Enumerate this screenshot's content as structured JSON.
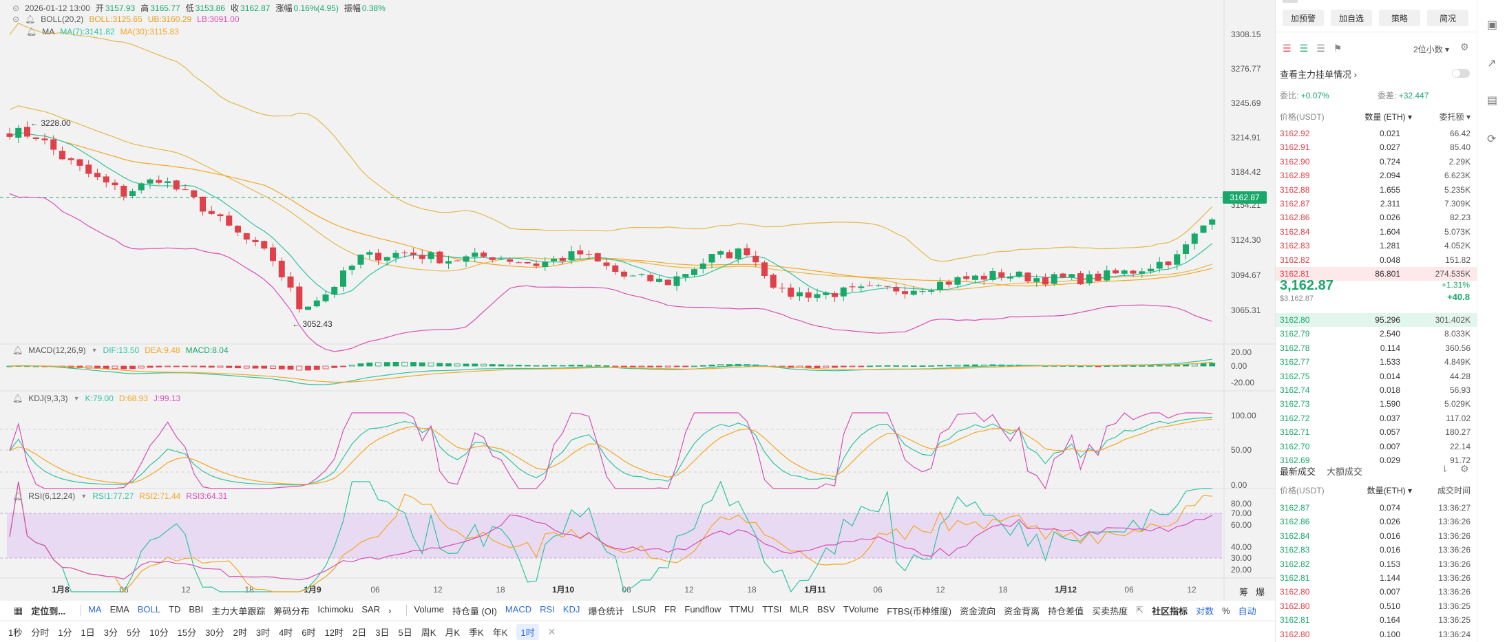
{
  "header": {
    "date": "2026-01-12 13:00",
    "open_label": "开",
    "open": "3157.93",
    "high_label": "高",
    "high": "3165.77",
    "low_label": "低",
    "low": "3153.86",
    "close_label": "收",
    "close": "3162.87",
    "change_label": "涨幅",
    "change": "0.16%(4.95)",
    "amp_label": "振幅",
    "amp": "0.38%"
  },
  "boll": {
    "label": "BOLL(20,2)",
    "boll": "BOLL:3125.65",
    "ub": "UB:3160.29",
    "lb": "LB:3091.00"
  },
  "ma": {
    "label": "MA",
    "ma7": "MA(7):3141.82",
    "ma30": "MA(30):3115.83"
  },
  "macd": {
    "label": "MACD(12,26,9)",
    "dif": "DIF:13.50",
    "dea": "DEA:9.48",
    "macd": "MACD:8.04"
  },
  "kdj": {
    "label": "KDJ(9,3,3)",
    "k": "K:79.00",
    "d": "D:68.93",
    "j": "J:99.13"
  },
  "rsi": {
    "label": "RSI(6,12,24)",
    "r1": "RSI1:77.27",
    "r2": "RSI2:71.44",
    "r3": "RSI3:64.31"
  },
  "annotations": {
    "high": "3228.00",
    "low": "3052.43"
  },
  "price_axis": [
    "3308.15",
    "3276.77",
    "3245.69",
    "3214.91",
    "3184.42",
    "3154.21",
    "3124.30",
    "3094.67",
    "3065.31"
  ],
  "current_price_tag": "3162.87",
  "macd_axis": [
    "20.00",
    "0.00",
    "-20.00"
  ],
  "kdj_axis": [
    "100.00",
    "50.00",
    "0.00"
  ],
  "rsi_axis": [
    "80.00",
    "70.00",
    "60.00",
    "40.00",
    "30.00",
    "20.00"
  ],
  "time_axis": [
    "1月8",
    "06",
    "12",
    "18",
    "1月9",
    "06",
    "12",
    "18",
    "1月10",
    "06",
    "12",
    "18",
    "1月11",
    "06",
    "12",
    "18",
    "1月12",
    "06",
    "12"
  ],
  "axis_corner": [
    "筹",
    "爆"
  ],
  "indicators_bar": {
    "draw_tool": "定位到...",
    "items": [
      "MA",
      "EMA",
      "BOLL",
      "TD",
      "BBI",
      "主力大单跟踪",
      "筹码分布",
      "Ichimoku",
      "SAR"
    ],
    "more": "›",
    "sub_items": [
      "Volume",
      "持仓量 (OI)",
      "MACD",
      "RSI",
      "KDJ",
      "爆仓统计",
      "LSUR",
      "FR",
      "Fundflow",
      "TTMU",
      "TTSI",
      "MLR",
      "BSV",
      "TVolume",
      "FTBS(币种维度)",
      "资金流向",
      "资金背离",
      "持仓差值",
      "买卖热度"
    ],
    "community": "社区指标",
    "log": "对数",
    "pct": "%",
    "auto": "自动"
  },
  "timeframes": [
    "1秒",
    "分时",
    "1分",
    "1日",
    "3分",
    "5分",
    "10分",
    "15分",
    "30分",
    "2时",
    "3时",
    "4时",
    "6时",
    "12时",
    "2日",
    "3日",
    "5日",
    "周K",
    "月K",
    "季K",
    "年K",
    "1时"
  ],
  "panel": {
    "buttons": [
      "加预警",
      "加自选",
      "策略",
      "简况"
    ],
    "decimals": "2位小数",
    "main_orders": "查看主力挂单情况",
    "ratio_label": "委比:",
    "ratio": "+0.07%",
    "diff_label": "委差:",
    "diff": "+32.447",
    "cols": [
      "价格(USDT)",
      "数量 (ETH)",
      "委托额"
    ],
    "asks": [
      [
        "3162.92",
        "0.021",
        "66.42"
      ],
      [
        "3162.91",
        "0.027",
        "85.40"
      ],
      [
        "3162.90",
        "0.724",
        "2.29K"
      ],
      [
        "3162.89",
        "2.094",
        "6.623K"
      ],
      [
        "3162.88",
        "1.655",
        "5.235K"
      ],
      [
        "3162.87",
        "2.311",
        "7.309K"
      ],
      [
        "3162.86",
        "0.026",
        "82.23"
      ],
      [
        "3162.84",
        "1.604",
        "5.073K"
      ],
      [
        "3162.83",
        "1.281",
        "4.052K"
      ],
      [
        "3162.82",
        "0.048",
        "151.82"
      ],
      [
        "3162.81",
        "86.801",
        "274.535K"
      ]
    ],
    "last_price": "3,162.87",
    "last_price_sub": "$3,162.87",
    "pct_change": "+1.31%",
    "abs_change": "+40.8",
    "bids": [
      [
        "3162.80",
        "95.296",
        "301.402K"
      ],
      [
        "3162.79",
        "2.540",
        "8.033K"
      ],
      [
        "3162.78",
        "0.114",
        "360.56"
      ],
      [
        "3162.77",
        "1.533",
        "4.849K"
      ],
      [
        "3162.75",
        "0.014",
        "44.28"
      ],
      [
        "3162.74",
        "0.018",
        "56.93"
      ],
      [
        "3162.73",
        "1.590",
        "5.029K"
      ],
      [
        "3162.72",
        "0.037",
        "117.02"
      ],
      [
        "3162.71",
        "0.057",
        "180.27"
      ],
      [
        "3162.70",
        "0.007",
        "22.14"
      ],
      [
        "3162.69",
        "0.029",
        "91.72"
      ]
    ],
    "trades_tab1": "最新成交",
    "trades_tab2": "大额成交",
    "trade_cols": [
      "价格(USDT)",
      "数量(ETH)",
      "成交时间"
    ],
    "trades": [
      [
        "3162.87",
        "0.074",
        "13:36:27",
        "g"
      ],
      [
        "3162.86",
        "0.026",
        "13:36:26",
        "g"
      ],
      [
        "3162.84",
        "0.016",
        "13:36:26",
        "g"
      ],
      [
        "3162.83",
        "0.016",
        "13:36:26",
        "g"
      ],
      [
        "3162.82",
        "0.153",
        "13:36:26",
        "g"
      ],
      [
        "3162.81",
        "1.144",
        "13:36:26",
        "g"
      ],
      [
        "3162.80",
        "0.007",
        "13:36:26",
        "r"
      ],
      [
        "3162.80",
        "0.510",
        "13:36:25",
        "r"
      ],
      [
        "3162.81",
        "0.164",
        "13:36:25",
        "g"
      ],
      [
        "3162.80",
        "0.100",
        "13:36:24",
        "r"
      ]
    ]
  },
  "colors": {
    "up": "#18a86a",
    "down": "#e0404a",
    "ma7": "#2ec4a0",
    "ma30": "#f5a623",
    "boll": "#e4b84a",
    "lb": "#d84fb5",
    "accent": "#2b6ae0"
  }
}
